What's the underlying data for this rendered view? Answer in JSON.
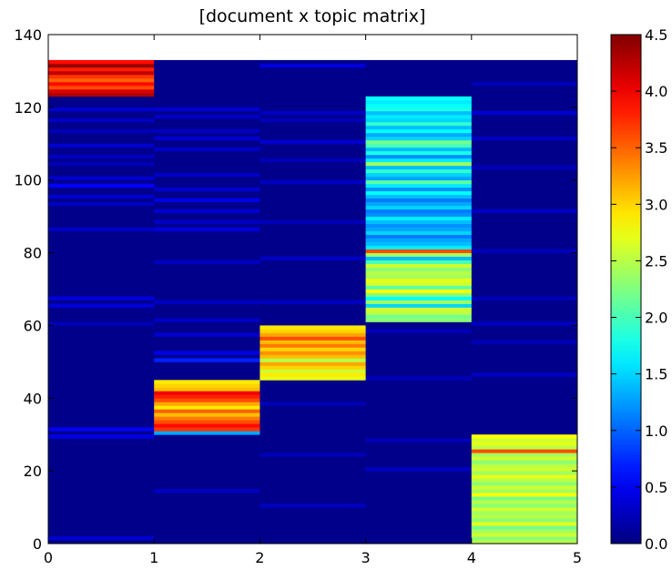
{
  "chart_data": {
    "type": "heatmap",
    "title": "[document x topic matrix]",
    "xlabel": "",
    "ylabel": "",
    "xlim": [
      0,
      5
    ],
    "ylim": [
      0,
      140
    ],
    "data_rows": 133,
    "x_ticks": [
      "0",
      "1",
      "2",
      "3",
      "4",
      "5"
    ],
    "y_ticks": [
      "0",
      "20",
      "40",
      "60",
      "80",
      "100",
      "120",
      "140"
    ],
    "colorbar": {
      "vmin": 0.0,
      "vmax": 4.5,
      "colormap": "jet",
      "ticks": [
        "0.0",
        "0.5",
        "1.0",
        "1.5",
        "2.0",
        "2.5",
        "3.0",
        "3.5",
        "4.0",
        "4.5"
      ]
    },
    "background_value": 0.05,
    "blocks": [
      {
        "topic": 0,
        "row_start": 123,
        "row_end": 133,
        "values": [
          4.3,
          4.1,
          3.6,
          3.9,
          3.5,
          3.7,
          4.2,
          3.8,
          4.4,
          3.9
        ]
      },
      {
        "topic": 1,
        "row_start": 30,
        "row_end": 45,
        "values": [
          1.3,
          3.7,
          3.9,
          3.6,
          3.4,
          3.1,
          3.5,
          2.9,
          3.2,
          3.6,
          3.8,
          4.0,
          3.1,
          3.0,
          2.9
        ]
      },
      {
        "topic": 2,
        "row_start": 45,
        "row_end": 60,
        "values": [
          2.7,
          2.9,
          2.6,
          3.0,
          3.2,
          2.5,
          3.1,
          3.3,
          3.0,
          3.4,
          3.1,
          3.6,
          3.2,
          3.0,
          2.9
        ]
      },
      {
        "topic": 3,
        "row_start": 61,
        "row_end": 123,
        "values": [
          2.3,
          2.2,
          2.5,
          2.6,
          1.5,
          2.4,
          1.7,
          2.3,
          2.8,
          2.1,
          2.6,
          2.7,
          2.4,
          2.5,
          2.3,
          2.6,
          2.0,
          1.4,
          2.4,
          3.6,
          1.6,
          1.4,
          1.3,
          1.1,
          1.5,
          1.3,
          1.2,
          1.4,
          1.6,
          1.2,
          1.1,
          1.5,
          1.3,
          1.1,
          1.4,
          1.7,
          1.2,
          1.6,
          2.1,
          1.3,
          1.5,
          1.9,
          1.4,
          2.4,
          1.6,
          1.2,
          1.8,
          1.4,
          2.0,
          2.2,
          1.5,
          1.3,
          1.7,
          1.4,
          1.9,
          1.5,
          1.6,
          1.4,
          1.8,
          1.7,
          1.6,
          1.7
        ]
      },
      {
        "topic": 4,
        "row_start": 0,
        "row_end": 30,
        "values": [
          2.5,
          2.3,
          2.6,
          2.4,
          2.2,
          2.7,
          2.3,
          2.5,
          2.4,
          2.6,
          2.3,
          2.5,
          2.2,
          2.8,
          2.4,
          2.6,
          2.3,
          2.5,
          2.7,
          2.4,
          2.6,
          2.5,
          2.3,
          2.6,
          2.4,
          3.6,
          2.5,
          2.7,
          2.6,
          2.8
        ]
      }
    ],
    "faint_rows": [
      {
        "topic": 0,
        "rows": [
          [
            1,
            0.35
          ],
          [
            29,
            0.45
          ],
          [
            31,
            0.5
          ],
          [
            60,
            0.25
          ],
          [
            65,
            0.4
          ],
          [
            67,
            0.4
          ],
          [
            86,
            0.3
          ],
          [
            93,
            0.3
          ],
          [
            95,
            0.35
          ],
          [
            98,
            0.55
          ],
          [
            100,
            0.35
          ],
          [
            104,
            0.25
          ],
          [
            106,
            0.3
          ],
          [
            109,
            0.35
          ],
          [
            113,
            0.25
          ],
          [
            116,
            0.3
          ],
          [
            119,
            0.35
          ]
        ]
      },
      {
        "topic": 1,
        "rows": [
          [
            14,
            0.3
          ],
          [
            50,
            0.7
          ],
          [
            52,
            0.45
          ],
          [
            57,
            0.35
          ],
          [
            61,
            0.3
          ],
          [
            66,
            0.3
          ],
          [
            77,
            0.3
          ],
          [
            86,
            0.4
          ],
          [
            88,
            0.3
          ],
          [
            91,
            0.35
          ],
          [
            94,
            0.45
          ],
          [
            97,
            0.35
          ],
          [
            101,
            0.3
          ],
          [
            108,
            0.3
          ],
          [
            111,
            0.35
          ],
          [
            113,
            0.3
          ],
          [
            117,
            0.3
          ],
          [
            119,
            0.35
          ]
        ]
      },
      {
        "topic": 2,
        "rows": [
          [
            10,
            0.3
          ],
          [
            24,
            0.25
          ],
          [
            38,
            0.25
          ],
          [
            66,
            0.3
          ],
          [
            78,
            0.3
          ],
          [
            88,
            0.25
          ],
          [
            99,
            0.3
          ],
          [
            105,
            0.25
          ],
          [
            110,
            0.35
          ],
          [
            116,
            0.25
          ],
          [
            118,
            0.3
          ],
          [
            131,
            0.4
          ]
        ]
      },
      {
        "topic": 3,
        "rows": [
          [
            20,
            0.3
          ],
          [
            28,
            0.25
          ],
          [
            45,
            0.25
          ],
          [
            58,
            0.25
          ]
        ]
      },
      {
        "topic": 4,
        "rows": [
          [
            46,
            0.3
          ],
          [
            55,
            0.25
          ],
          [
            60,
            0.3
          ],
          [
            67,
            0.25
          ],
          [
            80,
            0.25
          ],
          [
            91,
            0.3
          ],
          [
            103,
            0.25
          ],
          [
            111,
            0.3
          ],
          [
            118,
            0.35
          ],
          [
            126,
            0.25
          ]
        ]
      }
    ]
  }
}
